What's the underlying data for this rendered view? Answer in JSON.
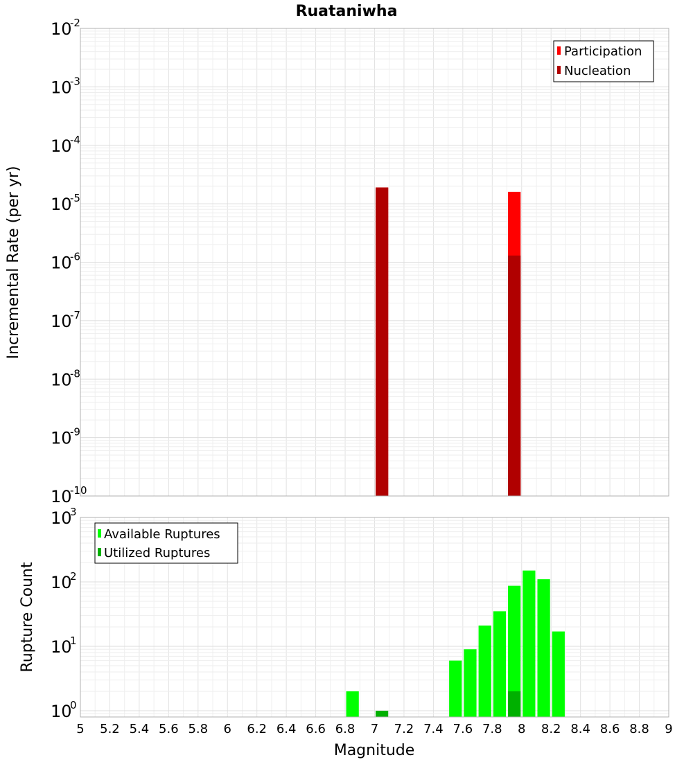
{
  "title": "Ruataniwha",
  "xlabel": "Magnitude",
  "x_ticks": [
    "5",
    "5.2",
    "5.4",
    "5.6",
    "5.8",
    "6",
    "6.2",
    "6.4",
    "6.6",
    "6.8",
    "7",
    "7.2",
    "7.4",
    "7.6",
    "7.8",
    "8",
    "8.2",
    "8.4",
    "8.6",
    "8.8",
    "9"
  ],
  "chart_data": [
    {
      "type": "bar",
      "title": "Ruataniwha",
      "ylabel": "Incremental Rate (per yr)",
      "xlabel": "",
      "xlim": [
        5,
        9
      ],
      "ylim": [
        1e-10,
        0.01
      ],
      "y_scale": "log",
      "bar_width": 0.1,
      "grid": true,
      "legend_position": "top-right",
      "y_ticks": [
        {
          "base": "10",
          "exp": "-2",
          "value": 0.01
        },
        {
          "base": "10",
          "exp": "-3",
          "value": 0.001
        },
        {
          "base": "10",
          "exp": "-4",
          "value": 0.0001
        },
        {
          "base": "10",
          "exp": "-5",
          "value": 1e-05
        },
        {
          "base": "10",
          "exp": "-6",
          "value": 1e-06
        },
        {
          "base": "10",
          "exp": "-7",
          "value": 1e-07
        },
        {
          "base": "10",
          "exp": "-8",
          "value": 1e-08
        },
        {
          "base": "10",
          "exp": "-9",
          "value": 1e-09
        },
        {
          "base": "10",
          "exp": "-10",
          "value": 1e-10
        }
      ],
      "series": [
        {
          "name": "Participation",
          "color": "#ff0000",
          "x": [
            7.05,
            7.95
          ],
          "values": [
            1.9e-05,
            1.6e-05
          ]
        },
        {
          "name": "Nucleation",
          "color": "#b00000",
          "x": [
            7.05,
            7.95
          ],
          "values": [
            1.9e-05,
            1.3e-06
          ]
        }
      ]
    },
    {
      "type": "bar",
      "ylabel": "Rupture Count",
      "xlabel": "Magnitude",
      "xlim": [
        5,
        9
      ],
      "ylim": [
        0.8,
        1000
      ],
      "y_scale": "log",
      "bar_width": 0.1,
      "grid": true,
      "legend_position": "top-left",
      "y_ticks": [
        {
          "base": "10",
          "exp": "3",
          "value": 1000
        },
        {
          "base": "10",
          "exp": "2",
          "value": 100
        },
        {
          "base": "10",
          "exp": "1",
          "value": 10
        },
        {
          "base": "10",
          "exp": "0",
          "value": 1
        }
      ],
      "series": [
        {
          "name": "Available Ruptures",
          "color": "#00ff00",
          "x": [
            6.85,
            7.55,
            7.65,
            7.75,
            7.85,
            7.95,
            8.05,
            8.15,
            8.25
          ],
          "values": [
            2,
            6,
            9,
            21,
            35,
            87,
            150,
            110,
            17
          ]
        },
        {
          "name": "Utilized Ruptures",
          "color": "#00b000",
          "x": [
            7.05,
            7.95
          ],
          "values": [
            1,
            2
          ]
        }
      ]
    }
  ]
}
